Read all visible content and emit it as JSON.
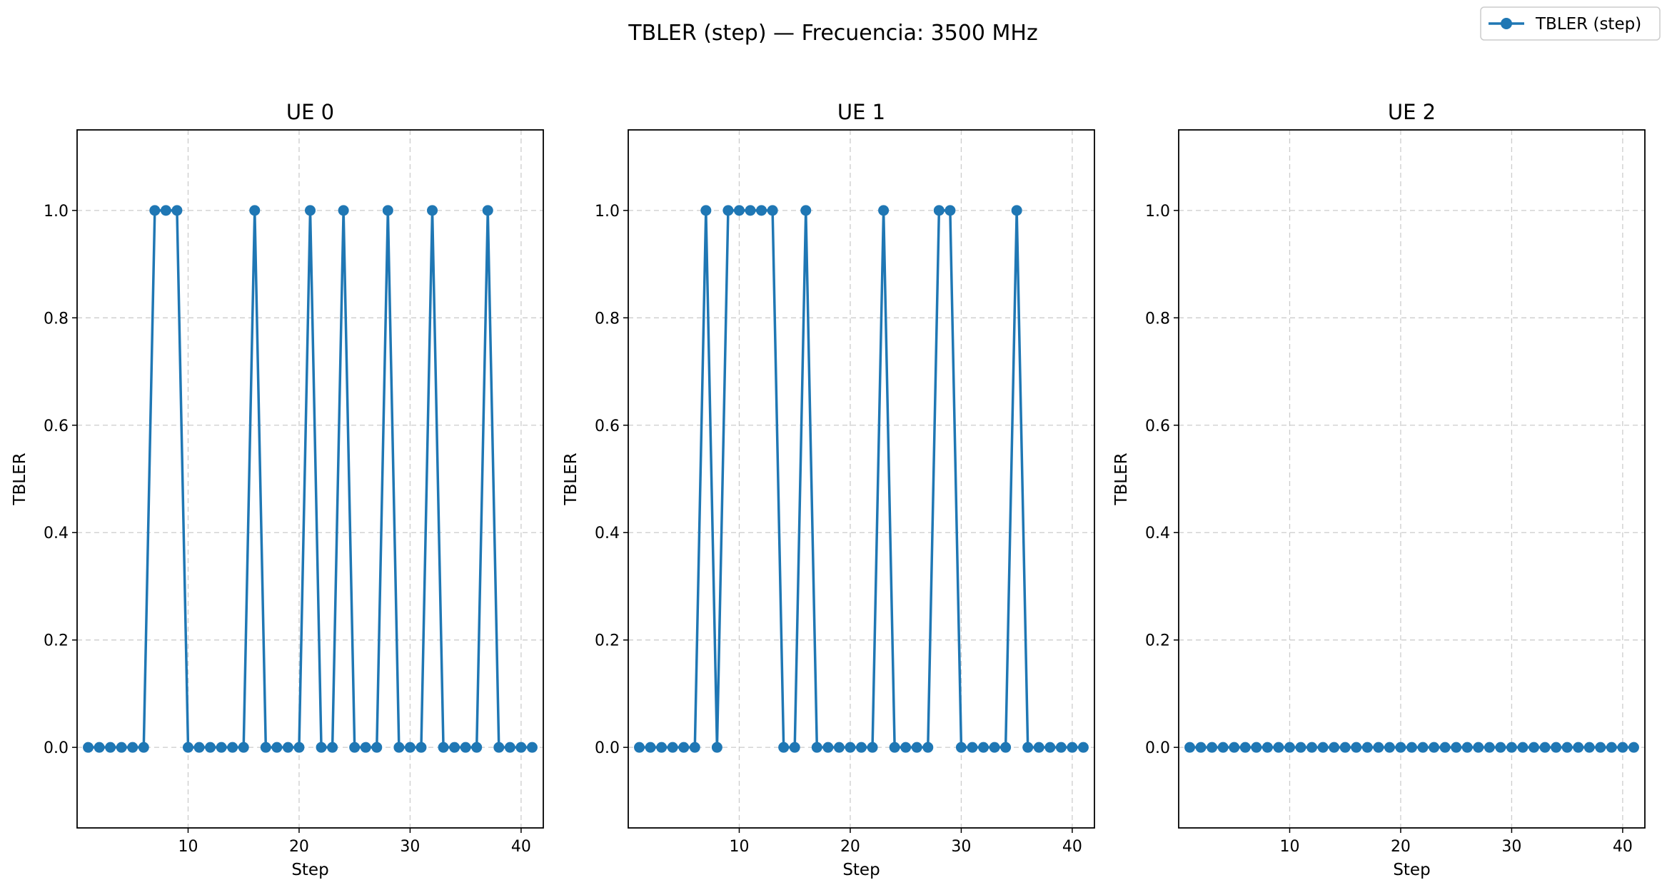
{
  "figure": {
    "title": "TBLER (step) — Frecuencia: 3500 MHz"
  },
  "legend": {
    "label": "TBLER (step)",
    "placement": "top-right"
  },
  "colors": {
    "series": "#1f77b4",
    "grid": "#cccccc",
    "axes": "#000000"
  },
  "chart_data": [
    {
      "type": "line",
      "title": "UE 0",
      "xlabel": "Step",
      "ylabel": "TBLER",
      "xlim": [
        0.0,
        42.0
      ],
      "ylim": [
        -0.15,
        1.15
      ],
      "xticks": [
        10,
        20,
        30,
        40
      ],
      "yticks": [
        0.0,
        0.2,
        0.4,
        0.6,
        0.8,
        1.0
      ],
      "grid": true,
      "series": [
        {
          "name": "TBLER (step)",
          "x": [
            1,
            2,
            3,
            4,
            5,
            6,
            7,
            8,
            9,
            10,
            11,
            12,
            13,
            14,
            15,
            16,
            17,
            18,
            19,
            20,
            21,
            22,
            23,
            24,
            25,
            26,
            27,
            28,
            29,
            30,
            31,
            32,
            33,
            34,
            35,
            36,
            37,
            38,
            39,
            40,
            41
          ],
          "y": [
            0,
            0,
            0,
            0,
            0,
            0,
            1,
            1,
            1,
            0,
            0,
            0,
            0,
            0,
            0,
            1,
            0,
            0,
            0,
            0,
            1,
            0,
            0,
            1,
            0,
            0,
            0,
            1,
            0,
            0,
            0,
            1,
            0,
            0,
            0,
            0,
            1,
            0,
            0,
            0,
            0
          ]
        }
      ]
    },
    {
      "type": "line",
      "title": "UE 1",
      "xlabel": "Step",
      "ylabel": "TBLER",
      "xlim": [
        0.0,
        42.0
      ],
      "ylim": [
        -0.15,
        1.15
      ],
      "xticks": [
        10,
        20,
        30,
        40
      ],
      "yticks": [
        0.0,
        0.2,
        0.4,
        0.6,
        0.8,
        1.0
      ],
      "grid": true,
      "series": [
        {
          "name": "TBLER (step)",
          "x": [
            1,
            2,
            3,
            4,
            5,
            6,
            7,
            8,
            9,
            10,
            11,
            12,
            13,
            14,
            15,
            16,
            17,
            18,
            19,
            20,
            21,
            22,
            23,
            24,
            25,
            26,
            27,
            28,
            29,
            30,
            31,
            32,
            33,
            34,
            35,
            36,
            37,
            38,
            39,
            40,
            41
          ],
          "y": [
            0,
            0,
            0,
            0,
            0,
            0,
            1,
            0,
            1,
            1,
            1,
            1,
            1,
            0,
            0,
            1,
            0,
            0,
            0,
            0,
            0,
            0,
            1,
            0,
            0,
            0,
            0,
            1,
            1,
            0,
            0,
            0,
            0,
            0,
            1,
            0,
            0,
            0,
            0,
            0,
            0
          ]
        }
      ]
    },
    {
      "type": "line",
      "title": "UE 2",
      "xlabel": "Step",
      "ylabel": "TBLER",
      "xlim": [
        0.0,
        42.0
      ],
      "ylim": [
        -0.15,
        1.15
      ],
      "xticks": [
        10,
        20,
        30,
        40
      ],
      "yticks": [
        0.0,
        0.2,
        0.4,
        0.6,
        0.8,
        1.0
      ],
      "grid": true,
      "series": [
        {
          "name": "TBLER (step)",
          "x": [
            1,
            2,
            3,
            4,
            5,
            6,
            7,
            8,
            9,
            10,
            11,
            12,
            13,
            14,
            15,
            16,
            17,
            18,
            19,
            20,
            21,
            22,
            23,
            24,
            25,
            26,
            27,
            28,
            29,
            30,
            31,
            32,
            33,
            34,
            35,
            36,
            37,
            38,
            39,
            40,
            41
          ],
          "y": [
            0,
            0,
            0,
            0,
            0,
            0,
            0,
            0,
            0,
            0,
            0,
            0,
            0,
            0,
            0,
            0,
            0,
            0,
            0,
            0,
            0,
            0,
            0,
            0,
            0,
            0,
            0,
            0,
            0,
            0,
            0,
            0,
            0,
            0,
            0,
            0,
            0,
            0,
            0,
            0,
            0
          ]
        }
      ]
    }
  ]
}
